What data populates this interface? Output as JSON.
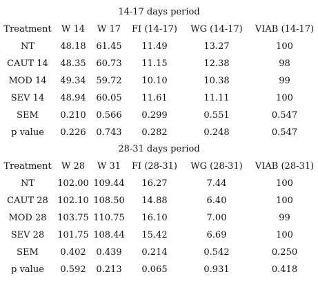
{
  "sections": [
    {
      "title": "14-17 days period",
      "headers": [
        "Treatment",
        "W 14",
        "W 17",
        "FI (14-17)",
        "WG (14-17)",
        "VIAB (14-17)"
      ],
      "rows": [
        [
          "NT",
          "48.18",
          "61.45",
          "11.49",
          "13.27",
          "100"
        ],
        [
          "CAUT 14",
          "48.35",
          "60.73",
          "11.15",
          "12.38",
          "98"
        ],
        [
          "MOD 14",
          "49.34",
          "59.72",
          "10.10",
          "10.38",
          "99"
        ],
        [
          "SEV 14",
          "48.94",
          "60.05",
          "11.61",
          "11.11",
          "100"
        ],
        [
          "SEM",
          "0.210",
          "0.566",
          "0.299",
          "0.551",
          "0.547"
        ],
        [
          "p value",
          "0.226",
          "0.743",
          "0.282",
          "0.248",
          "0.547"
        ]
      ]
    },
    {
      "title": "28-31 days period",
      "headers": [
        "Treatment",
        "W 28",
        "W 31",
        "FI (28-31)",
        "WG (28-31)",
        "VIAB (28-31)"
      ],
      "rows": [
        [
          "NT",
          "102.00",
          "109.44",
          "16.27",
          "7.44",
          "100"
        ],
        [
          "CAUT 28",
          "102.10",
          "108.50",
          "14.88",
          "6.40",
          "100"
        ],
        [
          "MOD 28",
          "103.75",
          "110.75",
          "16.10",
          "7.00",
          "99"
        ],
        [
          "SEV 28",
          "101.75",
          "108.44",
          "15.42",
          "6.69",
          "100"
        ],
        [
          "SEM",
          "0.402",
          "0.439",
          "0.214",
          "0.542",
          "0.250"
        ],
        [
          "p value",
          "0.592",
          "0.213",
          "0.065",
          "0.931",
          "0.418"
        ]
      ]
    }
  ]
}
